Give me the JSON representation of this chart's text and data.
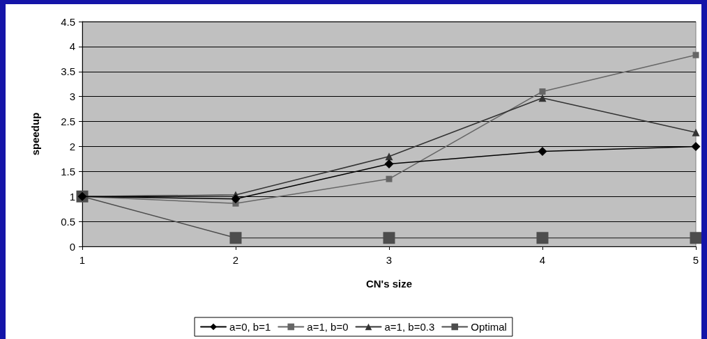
{
  "chart_data": {
    "type": "line",
    "xlabel": "CN's size",
    "ylabel": "speedup",
    "x": [
      1,
      2,
      3,
      4,
      5
    ],
    "xlim": [
      1,
      5
    ],
    "xticks": [
      1,
      2,
      3,
      4,
      5
    ],
    "ylim": [
      0,
      4.5
    ],
    "yticks": [
      0,
      0.5,
      1,
      1.5,
      2,
      2.5,
      3,
      3.5,
      4,
      4.5
    ],
    "grid": "y",
    "legend": "bottom",
    "series": [
      {
        "name": "a=0, b=1",
        "color": "#000000",
        "marker": "diamond",
        "values": [
          1,
          0.95,
          1.65,
          1.9,
          2.0
        ]
      },
      {
        "name": "a=1, b=0",
        "color": "#666666",
        "marker": "square",
        "values": [
          1,
          0.86,
          1.35,
          3.1,
          3.83
        ]
      },
      {
        "name": "a=1, b=0.3",
        "color": "#333333",
        "marker": "triangle",
        "values": [
          1,
          1.03,
          1.8,
          2.97,
          2.28
        ]
      },
      {
        "name": "Optimal",
        "color": "#4d4d4d",
        "marker": "square",
        "values": [
          1,
          0.17,
          0.17,
          0.17,
          0.17
        ]
      }
    ]
  }
}
